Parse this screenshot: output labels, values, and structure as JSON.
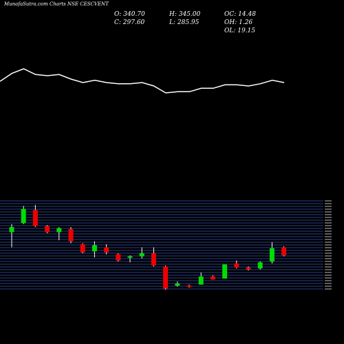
{
  "header": {
    "title": "MunafaSutra.com Charts NSE CESCVENT",
    "open": "O: 340.70",
    "close": "C: 297.60",
    "high": "H: 345.00",
    "low": "L: 285.95",
    "oc": "OC: 14.48",
    "oh": "OH: 1.26",
    "ol": "OL: 19.15"
  },
  "colors": {
    "background": "#000000",
    "up": "#00dd00",
    "down": "#ee0000",
    "wick": "#ffffff",
    "line": "#ffffff",
    "grid": "#2a3f8a"
  },
  "chart_data": [
    {
      "type": "line",
      "description_key": "price overlay line",
      "values": [
        31,
        38,
        42,
        37,
        36,
        37,
        33,
        30,
        32,
        30,
        29,
        29,
        30,
        27,
        21,
        22,
        22,
        25,
        25,
        28,
        28,
        27,
        29,
        32,
        30
      ]
    },
    {
      "type": "candlestick",
      "candles": [
        {
          "o": 57,
          "c": 62,
          "h": 65,
          "l": 42,
          "up": true
        },
        {
          "o": 66,
          "c": 80,
          "h": 83,
          "l": 65,
          "up": true
        },
        {
          "o": 79,
          "c": 63,
          "h": 84,
          "l": 62,
          "up": false
        },
        {
          "o": 63,
          "c": 57,
          "h": 64,
          "l": 56,
          "up": false
        },
        {
          "o": 57,
          "c": 61,
          "h": 62,
          "l": 49,
          "up": true
        },
        {
          "o": 60,
          "c": 48,
          "h": 62,
          "l": 46,
          "up": false
        },
        {
          "o": 45,
          "c": 37,
          "h": 46,
          "l": 36,
          "up": false
        },
        {
          "o": 38,
          "c": 44,
          "h": 48,
          "l": 32,
          "up": true
        },
        {
          "o": 42,
          "c": 37,
          "h": 45,
          "l": 35,
          "up": false
        },
        {
          "o": 35,
          "c": 29,
          "h": 36,
          "l": 28,
          "up": false
        },
        {
          "o": 32,
          "c": 33,
          "h": 34,
          "l": 27,
          "up": true
        },
        {
          "o": 33,
          "c": 36,
          "h": 42,
          "l": 31,
          "up": true
        },
        {
          "o": 36,
          "c": 24,
          "h": 42,
          "l": 23,
          "up": false
        },
        {
          "o": 23,
          "c": 1,
          "h": 24,
          "l": 0,
          "up": false
        },
        {
          "o": 4,
          "c": 6,
          "h": 8,
          "l": 3,
          "up": true
        },
        {
          "o": 4,
          "c": 4,
          "h": 5,
          "l": 2,
          "up": false
        },
        {
          "o": 5,
          "c": 13,
          "h": 17,
          "l": 5,
          "up": true
        },
        {
          "o": 13,
          "c": 10,
          "h": 14,
          "l": 10,
          "up": false
        },
        {
          "o": 11,
          "c": 25,
          "h": 25,
          "l": 11,
          "up": true
        },
        {
          "o": 26,
          "c": 22,
          "h": 29,
          "l": 21,
          "up": false
        },
        {
          "o": 22,
          "c": 20,
          "h": 23,
          "l": 19,
          "up": false
        },
        {
          "o": 21,
          "c": 27,
          "h": 28,
          "l": 20,
          "up": true
        },
        {
          "o": 28,
          "c": 41,
          "h": 47,
          "l": 26,
          "up": true
        },
        {
          "o": 42,
          "c": 34,
          "h": 43,
          "l": 33,
          "up": false
        }
      ]
    }
  ]
}
